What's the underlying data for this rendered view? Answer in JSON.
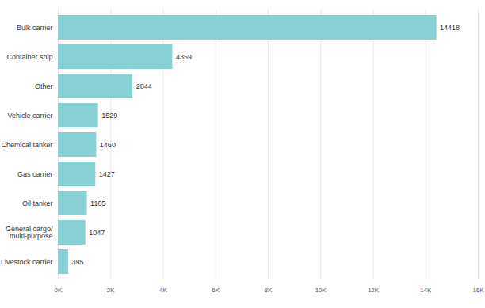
{
  "chart_data": {
    "type": "bar",
    "orientation": "horizontal",
    "categories": [
      "Bulk carrier",
      "Container ship",
      "Other",
      "Vehicle carrier",
      "Chemical tanker",
      "Gas carrier",
      "Oil tanker",
      "General cargo/\nmulti-purpose",
      "Livestock carrier"
    ],
    "values": [
      14418,
      4359,
      2844,
      1529,
      1460,
      1427,
      1105,
      1047,
      395
    ],
    "color": "#87d0d3",
    "xlim": [
      0,
      16000
    ],
    "xticks": [
      {
        "value": 0,
        "label": "0K"
      },
      {
        "value": 2000,
        "label": "2K"
      },
      {
        "value": 4000,
        "label": "4K"
      },
      {
        "value": 6000,
        "label": "6K"
      },
      {
        "value": 8000,
        "label": "8K"
      },
      {
        "value": 10000,
        "label": "10K"
      },
      {
        "value": 12000,
        "label": "12K"
      },
      {
        "value": 14000,
        "label": "14K"
      },
      {
        "value": 16000,
        "label": "16K"
      }
    ],
    "grid": true,
    "data_labels": true
  }
}
